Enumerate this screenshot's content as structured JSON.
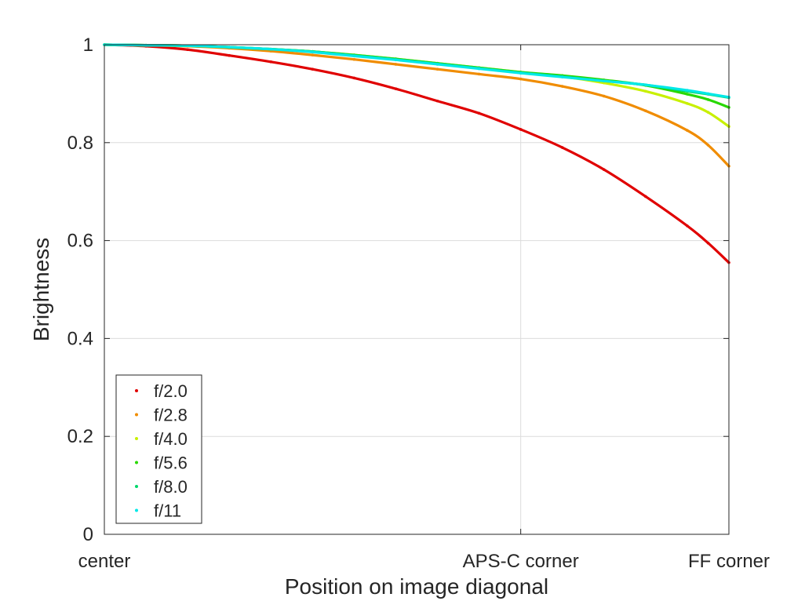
{
  "chart_data": {
    "type": "scatter",
    "title": "",
    "xlabel": "Position on image diagonal",
    "ylabel": "Brightness",
    "xlim": [
      0,
      1.5
    ],
    "ylim": [
      0,
      1
    ],
    "grid": true,
    "legend_position": "bottom-left",
    "x_ticks": [
      {
        "value": 0,
        "label": "center"
      },
      {
        "value": 1,
        "label": "APS-C corner"
      },
      {
        "value": 1.5,
        "label": "FF corner"
      }
    ],
    "y_ticks": [
      {
        "value": 0,
        "label": "0"
      },
      {
        "value": 0.2,
        "label": "0.2"
      },
      {
        "value": 0.4,
        "label": "0.4"
      },
      {
        "value": 0.6,
        "label": "0.6"
      },
      {
        "value": 0.8,
        "label": "0.8"
      },
      {
        "value": 1,
        "label": "1"
      }
    ],
    "x": [
      0,
      0.1,
      0.2,
      0.3,
      0.4,
      0.5,
      0.6,
      0.7,
      0.8,
      0.9,
      1.0,
      1.1,
      1.2,
      1.3,
      1.4,
      1.45,
      1.5
    ],
    "series": [
      {
        "name": "f/2.0",
        "color": "#e00000",
        "values": [
          1.0,
          0.997,
          0.99,
          0.978,
          0.965,
          0.95,
          0.932,
          0.91,
          0.885,
          0.86,
          0.827,
          0.79,
          0.745,
          0.69,
          0.63,
          0.595,
          0.555
        ]
      },
      {
        "name": "f/2.8",
        "color": "#f08c00",
        "values": [
          1.0,
          0.999,
          0.997,
          0.993,
          0.987,
          0.979,
          0.97,
          0.96,
          0.95,
          0.94,
          0.93,
          0.915,
          0.895,
          0.865,
          0.825,
          0.795,
          0.752
        ]
      },
      {
        "name": "f/4.0",
        "color": "#c8f000",
        "values": [
          1.0,
          0.999,
          0.998,
          0.995,
          0.991,
          0.986,
          0.979,
          0.971,
          0.962,
          0.953,
          0.944,
          0.935,
          0.922,
          0.905,
          0.88,
          0.862,
          0.833
        ]
      },
      {
        "name": "f/5.6",
        "color": "#28d800",
        "values": [
          1.0,
          0.999,
          0.998,
          0.995,
          0.991,
          0.986,
          0.979,
          0.971,
          0.962,
          0.953,
          0.944,
          0.937,
          0.928,
          0.917,
          0.899,
          0.888,
          0.872
        ]
      },
      {
        "name": "f/8.0",
        "color": "#00d86a",
        "values": [
          1.0,
          0.999,
          0.998,
          0.995,
          0.991,
          0.986,
          0.978,
          0.97,
          0.961,
          0.952,
          0.943,
          0.935,
          0.926,
          0.918,
          0.905,
          0.899,
          0.892
        ]
      },
      {
        "name": "f/11",
        "color": "#00e8e8",
        "values": [
          1.0,
          0.999,
          0.998,
          0.995,
          0.991,
          0.985,
          0.977,
          0.969,
          0.96,
          0.951,
          0.942,
          0.934,
          0.926,
          0.918,
          0.907,
          0.9,
          0.893
        ]
      }
    ]
  }
}
